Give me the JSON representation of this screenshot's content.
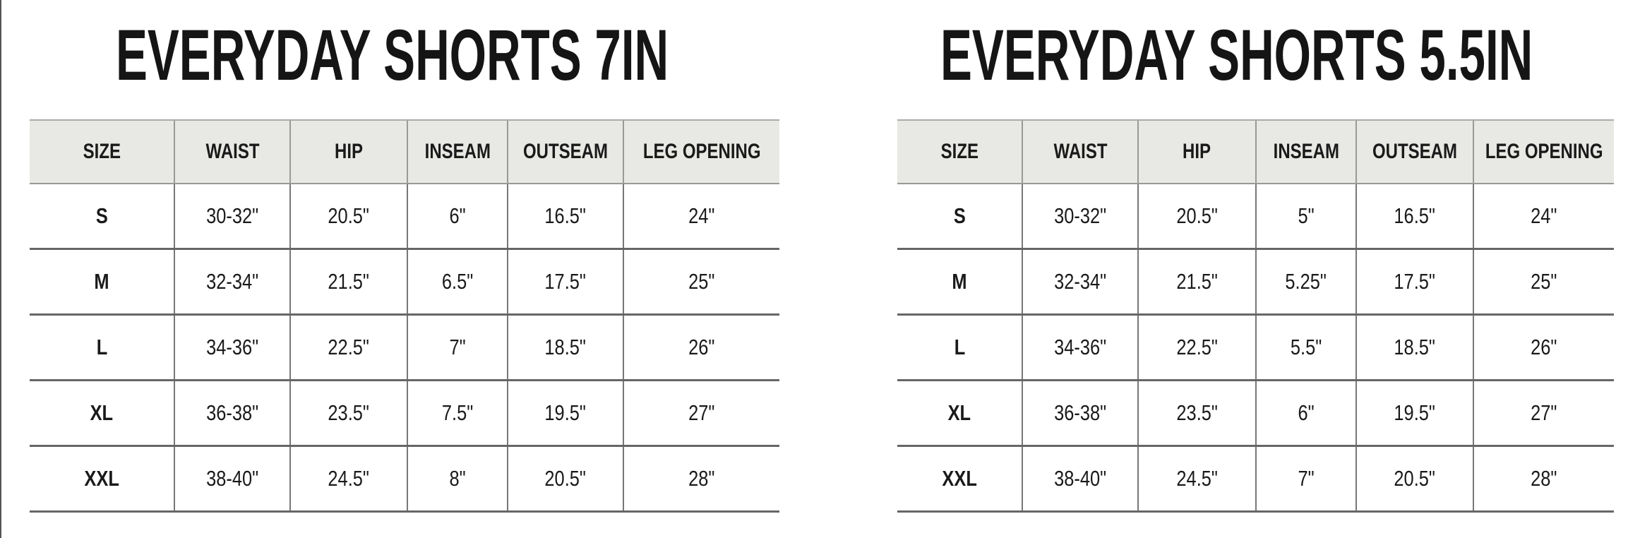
{
  "tables": [
    {
      "title": "EVERYDAY SHORTS 7IN",
      "headers": [
        "SIZE",
        "WAIST",
        "HIP",
        "INSEAM",
        "OUTSEAM",
        "LEG OPENING"
      ],
      "rows": [
        [
          "S",
          "30-32\"",
          "20.5\"",
          "6\"",
          "16.5\"",
          "24\""
        ],
        [
          "M",
          "32-34\"",
          "21.5\"",
          "6.5\"",
          "17.5\"",
          "25\""
        ],
        [
          "L",
          "34-36\"",
          "22.5\"",
          "7\"",
          "18.5\"",
          "26\""
        ],
        [
          "XL",
          "36-38\"",
          "23.5\"",
          "7.5\"",
          "19.5\"",
          "27\""
        ],
        [
          "XXL",
          "38-40\"",
          "24.5\"",
          "8\"",
          "20.5\"",
          "28\""
        ]
      ]
    },
    {
      "title": "EVERYDAY SHORTS 5.5IN",
      "headers": [
        "SIZE",
        "WAIST",
        "HIP",
        "INSEAM",
        "OUTSEAM",
        "LEG OPENING"
      ],
      "rows": [
        [
          "S",
          "30-32\"",
          "20.5\"",
          "5\"",
          "16.5\"",
          "24\""
        ],
        [
          "M",
          "32-34\"",
          "21.5\"",
          "5.25\"",
          "17.5\"",
          "25\""
        ],
        [
          "L",
          "34-36\"",
          "22.5\"",
          "5.5\"",
          "18.5\"",
          "26\""
        ],
        [
          "XL",
          "36-38\"",
          "23.5\"",
          "6\"",
          "19.5\"",
          "27\""
        ],
        [
          "XXL",
          "38-40\"",
          "24.5\"",
          "7\"",
          "20.5\"",
          "28\""
        ]
      ]
    }
  ],
  "colors": {
    "header_bg": "#e8e9e4",
    "text": "#1a1a1a"
  }
}
